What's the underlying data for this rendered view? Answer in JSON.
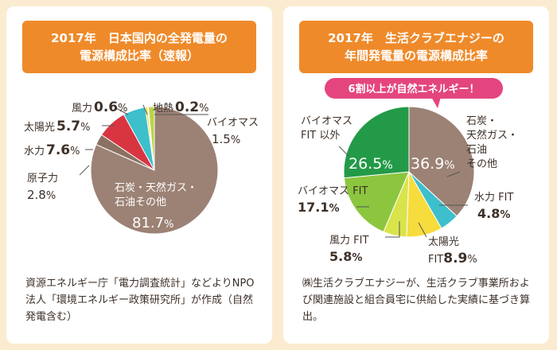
{
  "colors": {
    "background": "#fbecd1",
    "banner": "#ef8a2a",
    "callout": "#e4457e"
  },
  "left": {
    "title_line1": "2017年　日本国内の全発電量の",
    "title_line2": "電源構成比率（速報）",
    "note": "資源エネルギー庁「電力調査統計」などよりNPO法人「環境エネルギー政策研究所」が作成（自然発電含む）"
  },
  "right": {
    "title_line1": "2017年　生活クラブエナジーの",
    "title_line2": "年間発電量の電源構成比率",
    "callout": "6割以上が自然エネルギー！",
    "note": "㈱生活クラブエナジーが、生活クラブ事業所および関連施設と組合員宅に供給した実績に基づき算出。"
  },
  "chart_data": [
    {
      "type": "pie",
      "title": "2017年　日本国内の全発電量の電源構成比率（速報）",
      "unit": "%",
      "slices": [
        {
          "label": "石炭・天然ガス・石油その他",
          "value": 81.7,
          "color": "#9c8275"
        },
        {
          "label": "原子力",
          "value": 2.8,
          "color": "#8b7162"
        },
        {
          "label": "水力",
          "value": 7.6,
          "color": "#d83541"
        },
        {
          "label": "太陽光",
          "value": 5.7,
          "color": "#3dbfcc"
        },
        {
          "label": "風力",
          "value": 0.6,
          "color": "#f6dc3d"
        },
        {
          "label": "地熱",
          "value": 0.2,
          "color": "#a6c94e"
        },
        {
          "label": "バイオマス",
          "value": 1.5,
          "color": "#b8d543"
        }
      ]
    },
    {
      "type": "pie",
      "title": "2017年　生活クラブエナジーの年間発電量の電源構成比率",
      "unit": "%",
      "slices": [
        {
          "label": "石炭・天然ガス・石油その他",
          "value": 36.9,
          "color": "#9c8275"
        },
        {
          "label": "水力 FIT",
          "value": 4.8,
          "color": "#3dbfcc"
        },
        {
          "label": "太陽光 FIT",
          "value": 8.9,
          "color": "#f6dc3d"
        },
        {
          "label": "風力 FIT",
          "value": 5.8,
          "color": "#d9e44a"
        },
        {
          "label": "バイオマス FIT",
          "value": 17.1,
          "color": "#8cc63f"
        },
        {
          "label": "バイオマス FIT 以外",
          "value": 26.5,
          "color": "#239a48"
        }
      ]
    }
  ],
  "left_labels": {
    "fossil_1": "石炭・天然ガス・",
    "fossil_2": "石油その他",
    "fossil_val": "81.7",
    "nuclear": "原子力",
    "nuclear_val": "2.8",
    "hydro": "水力",
    "hydro_val": "7.6",
    "solar": "太陽光",
    "solar_val": "5.7",
    "wind": "風力",
    "wind_val": "0.6",
    "geo": "地熱",
    "geo_val": "0.2",
    "bio": "バイオマス",
    "bio_val": "1.5",
    "pct": "%"
  },
  "right_labels": {
    "fossil_1": "石炭・",
    "fossil_2": "天然ガス・",
    "fossil_3": "石油",
    "fossil_4": "その他",
    "fossil_val": "36.9",
    "hydro": "水力 FIT",
    "hydro_val": "4.8",
    "solar": "太陽光",
    "solar_fit": "FIT",
    "solar_val": "8.9",
    "wind": "風力 FIT",
    "wind_val": "5.8",
    "bio": "バイオマス FIT",
    "bio_val": "17.1",
    "bio_other_1": "バイオマス",
    "bio_other_2": "FIT 以外",
    "bio_other_val": "26.5",
    "pct": "%"
  }
}
